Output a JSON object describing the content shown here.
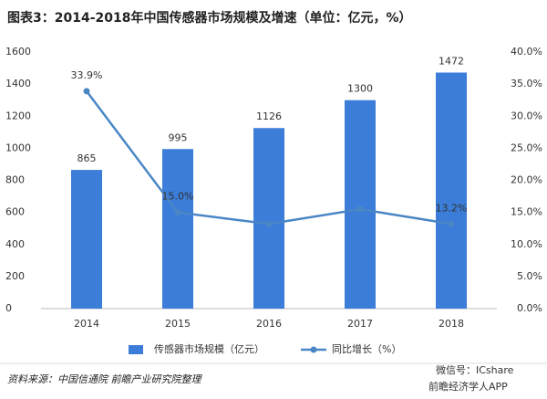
{
  "chart_data": {
    "type": "bar",
    "title": "图表3：2014-2018年中国传感器市场规模及增速（单位：亿元，%）",
    "categories": [
      "2014",
      "2015",
      "2016",
      "2017",
      "2018"
    ],
    "series": [
      {
        "name": "传感器市场规模（亿元）",
        "type": "bar",
        "color": "#3b7dd8",
        "values": [
          865,
          995,
          1126,
          1300,
          1472
        ]
      },
      {
        "name": "同比增长（%）",
        "type": "line",
        "axis": "y2",
        "color": "#4a86c5",
        "values": [
          33.9,
          15.0,
          13.2,
          15.5,
          13.2
        ],
        "value_labels": [
          "33.9%",
          "15.0%",
          null,
          null,
          "13.2%"
        ]
      }
    ],
    "ylim": [
      0,
      1600
    ],
    "yticks": [
      0,
      200,
      400,
      600,
      800,
      1000,
      1200,
      1400,
      1600
    ],
    "y2lim": [
      0,
      40
    ],
    "y2ticks": [
      {
        "value": 0,
        "label": "0.0%"
      },
      {
        "value": 5,
        "label": "5.0%"
      },
      {
        "value": 10,
        "label": "10.0%"
      },
      {
        "value": 15,
        "label": "15.0%"
      },
      {
        "value": 20,
        "label": "20.0%"
      },
      {
        "value": 25,
        "label": "25.0%"
      },
      {
        "value": 30,
        "label": "30.0%"
      },
      {
        "value": 35,
        "label": "35.0%"
      },
      {
        "value": 40,
        "label": "40.0%"
      }
    ],
    "grid": false,
    "source": "资料来源：中国信通院 前瞻产业研究院整理",
    "notes": [
      "微信号：ICshare",
      "前瞻经济学人APP"
    ]
  }
}
